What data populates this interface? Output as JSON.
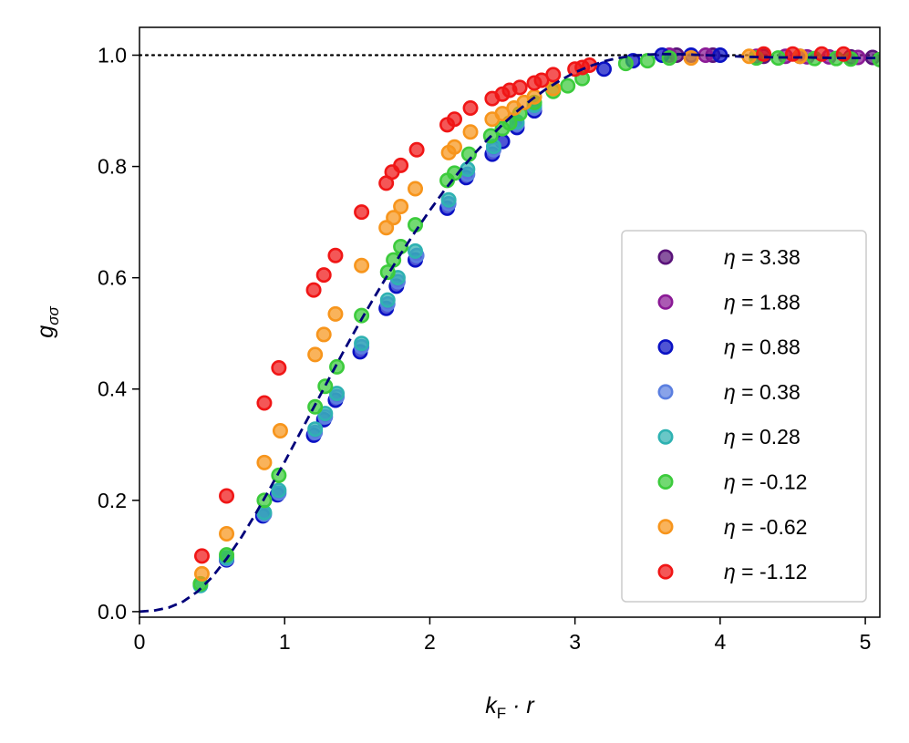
{
  "chart_data": {
    "type": "scatter",
    "title": "",
    "xlabel": "k_F · r",
    "xlabel_parts": {
      "k": "k",
      "sub": "F",
      "rest": " · r"
    },
    "ylabel": "g_σσ",
    "ylabel_parts": {
      "g": "g",
      "sub": "σσ"
    },
    "xlim": [
      0,
      5.1
    ],
    "ylim": [
      -0.01,
      1.05
    ],
    "xticks": [
      0,
      1,
      2,
      3,
      4,
      5
    ],
    "xtick_labels": [
      "0",
      "1",
      "2",
      "3",
      "4",
      "5"
    ],
    "yticks": [
      0.0,
      0.2,
      0.4,
      0.6,
      0.8,
      1.0
    ],
    "ytick_labels": [
      "0.0",
      "0.2",
      "0.4",
      "0.6",
      "0.8",
      "1.0"
    ],
    "grid": false,
    "legend_position": "lower-right",
    "reference_line": {
      "y": 1.0,
      "style": "dotted",
      "color": "#000000"
    },
    "fit_curve": {
      "style": "dashed",
      "color": "#00007a",
      "x": [
        0,
        0.1,
        0.2,
        0.3,
        0.4,
        0.5,
        0.6,
        0.7,
        0.8,
        0.9,
        1.0,
        1.1,
        1.2,
        1.3,
        1.4,
        1.5,
        1.6,
        1.7,
        1.8,
        1.9,
        2.0,
        2.1,
        2.2,
        2.3,
        2.4,
        2.5,
        2.6,
        2.7,
        2.8,
        2.9,
        3.0,
        3.1,
        3.2,
        3.3,
        3.4,
        3.5,
        3.6,
        3.7,
        3.8,
        3.9,
        4.0,
        4.2,
        4.4,
        4.6,
        4.8,
        5.0,
        5.1
      ],
      "y": [
        0.0,
        0.002,
        0.007,
        0.018,
        0.036,
        0.062,
        0.095,
        0.133,
        0.176,
        0.222,
        0.269,
        0.318,
        0.367,
        0.416,
        0.465,
        0.512,
        0.557,
        0.601,
        0.643,
        0.683,
        0.721,
        0.757,
        0.79,
        0.821,
        0.849,
        0.875,
        0.899,
        0.92,
        0.939,
        0.955,
        0.969,
        0.98,
        0.989,
        0.995,
        0.999,
        1.001,
        1.002,
        1.002,
        1.001,
        1.0,
        0.999,
        0.997,
        0.996,
        0.996,
        0.995,
        0.995,
        0.995
      ]
    },
    "series": [
      {
        "name": "η = 3.38",
        "eta": "3.38",
        "color": "#5a137a",
        "x": [
          3.7,
          3.95,
          4.3,
          4.55,
          4.9,
          5.05
        ],
        "y": [
          1.0,
          1.0,
          0.998,
          0.998,
          0.997,
          0.996
        ]
      },
      {
        "name": "η = 1.88",
        "eta": "1.88",
        "color": "#8b1a96",
        "x": [
          3.65,
          3.9,
          4.25,
          4.45,
          4.6,
          4.75,
          4.95
        ],
        "y": [
          1.0,
          1.0,
          0.998,
          0.998,
          0.997,
          0.997,
          0.996
        ]
      },
      {
        "name": "η = 0.88",
        "eta": "0.88",
        "color": "#0b12c4",
        "x": [
          0.6,
          0.85,
          0.95,
          1.2,
          1.27,
          1.35,
          1.52,
          1.7,
          1.77,
          1.9,
          2.12,
          2.25,
          2.43,
          2.5,
          2.6,
          2.72,
          3.2,
          3.4,
          3.6,
          3.8,
          4.0
        ],
        "y": [
          0.093,
          0.172,
          0.21,
          0.317,
          0.345,
          0.38,
          0.467,
          0.545,
          0.585,
          0.632,
          0.725,
          0.78,
          0.822,
          0.845,
          0.87,
          0.9,
          0.975,
          0.99,
          1.0,
          1.0,
          1.0
        ],
        "point_names": [
          "",
          "",
          "",
          "",
          "",
          "",
          "",
          "",
          "",
          "",
          "",
          "",
          "",
          "",
          "",
          "",
          "",
          "",
          "",
          "",
          ""
        ]
      },
      {
        "name": "η = 0.38",
        "eta": "0.38",
        "color": "#5b7fe0",
        "x": [
          0.6,
          0.86,
          0.96,
          1.21,
          1.28,
          1.36,
          1.53,
          1.71,
          1.78,
          1.91,
          2.13,
          2.26,
          2.44,
          2.6,
          2.72
        ],
        "y": [
          0.095,
          0.175,
          0.213,
          0.322,
          0.35,
          0.386,
          0.476,
          0.553,
          0.593,
          0.64,
          0.733,
          0.786,
          0.83,
          0.876,
          0.905
        ]
      },
      {
        "name": "η = 0.28",
        "eta": "0.28",
        "color": "#2fb2b2",
        "x": [
          0.42,
          0.6,
          0.86,
          0.96,
          1.21,
          1.28,
          1.36,
          1.53,
          1.71,
          1.78,
          1.9,
          2.13,
          2.26,
          2.44,
          2.6,
          2.72
        ],
        "y": [
          0.047,
          0.097,
          0.178,
          0.218,
          0.328,
          0.356,
          0.392,
          0.482,
          0.56,
          0.6,
          0.648,
          0.74,
          0.795,
          0.836,
          0.88,
          0.91
        ]
      },
      {
        "name": "η = -0.12",
        "eta": "-0.12",
        "color": "#3ccb3c",
        "x": [
          0.42,
          0.6,
          0.86,
          0.96,
          1.21,
          1.28,
          1.36,
          1.53,
          1.71,
          1.75,
          1.8,
          1.9,
          2.12,
          2.17,
          2.27,
          2.42,
          2.5,
          2.55,
          2.62,
          2.72,
          2.85,
          2.95,
          3.05,
          3.35,
          3.5,
          3.65,
          4.25,
          4.4,
          4.65,
          4.8,
          4.9,
          5.1
        ],
        "y": [
          0.05,
          0.102,
          0.2,
          0.245,
          0.368,
          0.405,
          0.44,
          0.532,
          0.61,
          0.632,
          0.656,
          0.695,
          0.775,
          0.788,
          0.822,
          0.855,
          0.868,
          0.878,
          0.895,
          0.915,
          0.935,
          0.945,
          0.958,
          0.985,
          0.99,
          0.995,
          0.995,
          0.995,
          0.994,
          0.994,
          0.993,
          0.992
        ]
      },
      {
        "name": "η = -0.62",
        "eta": "-0.62",
        "color": "#f7951c",
        "x": [
          0.43,
          0.6,
          0.86,
          0.97,
          1.21,
          1.27,
          1.35,
          1.53,
          1.7,
          1.75,
          1.8,
          1.9,
          2.13,
          2.17,
          2.28,
          2.43,
          2.5,
          2.58,
          2.65,
          2.72,
          2.85,
          3.8,
          4.2,
          4.55
        ],
        "y": [
          0.068,
          0.14,
          0.268,
          0.325,
          0.462,
          0.498,
          0.535,
          0.622,
          0.69,
          0.708,
          0.728,
          0.76,
          0.825,
          0.835,
          0.862,
          0.885,
          0.895,
          0.905,
          0.915,
          0.925,
          0.94,
          0.995,
          0.998,
          0.998
        ]
      },
      {
        "name": "η = -1.12",
        "eta": "-1.12",
        "color": "#f01616",
        "x": [
          0.43,
          0.6,
          0.86,
          0.96,
          1.2,
          1.27,
          1.35,
          1.53,
          1.7,
          1.74,
          1.8,
          1.91,
          2.12,
          2.17,
          2.28,
          2.43,
          2.5,
          2.55,
          2.62,
          2.72,
          2.77,
          2.85,
          3.0,
          3.05,
          3.1,
          4.3,
          4.5,
          4.7,
          4.85
        ],
        "y": [
          0.1,
          0.208,
          0.375,
          0.438,
          0.578,
          0.605,
          0.64,
          0.718,
          0.77,
          0.79,
          0.802,
          0.83,
          0.875,
          0.885,
          0.905,
          0.922,
          0.93,
          0.937,
          0.942,
          0.95,
          0.955,
          0.965,
          0.975,
          0.978,
          0.982,
          1.002,
          1.002,
          1.002,
          1.002
        ]
      }
    ]
  }
}
